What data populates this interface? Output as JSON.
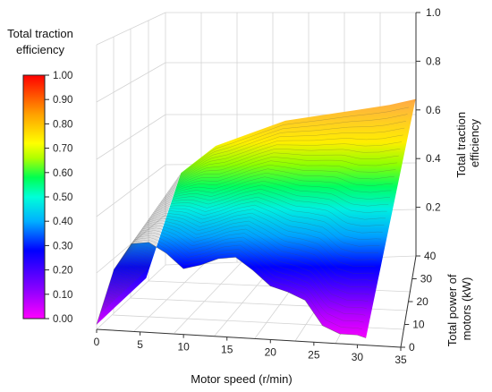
{
  "chart_data": {
    "type": "surface3d",
    "colorbar": {
      "title_line1": "Total traction",
      "title_line2": "efficiency",
      "ticks": [
        "1.00",
        "0.90",
        "0.80",
        "0.70",
        "0.60",
        "0.50",
        "0.40",
        "0.30",
        "0.20",
        "0.10",
        "0.00"
      ],
      "range": [
        0,
        1
      ],
      "colormap": [
        "#ff00ff",
        "#7a00ff",
        "#0000ff",
        "#00aaff",
        "#00ffd0",
        "#00ff40",
        "#a0ff00",
        "#ffff00",
        "#ffa000",
        "#ff0000"
      ]
    },
    "x_axis": {
      "label": "Motor speed (r/min)",
      "ticks": [
        "0",
        "5",
        "10",
        "15",
        "20",
        "25",
        "30",
        "35"
      ],
      "range": [
        0,
        35
      ]
    },
    "y_axis": {
      "label_line1": "Total power of",
      "label_line2": "motors (kW)",
      "ticks": [
        "0",
        "10",
        "20",
        "30",
        "40"
      ],
      "range": [
        0,
        40
      ]
    },
    "z_axis": {
      "label_line1": "Total traction",
      "label_line2": "efficiency",
      "ticks": [
        "0.2",
        "0.4",
        "0.6",
        "0.8",
        "1.0"
      ],
      "range": [
        0,
        1.0
      ]
    },
    "surface_front_profile": {
      "x": [
        0,
        2,
        4,
        6,
        8,
        10,
        12,
        14,
        16,
        18,
        20,
        22,
        24,
        26,
        28,
        30,
        31
      ],
      "z": [
        0.02,
        0.25,
        0.36,
        0.37,
        0.33,
        0.27,
        0.29,
        0.32,
        0.33,
        0.28,
        0.22,
        0.2,
        0.17,
        0.07,
        0.04,
        0.04,
        0.03
      ]
    },
    "surface_top_profile": {
      "x": [
        0,
        4,
        8,
        12,
        16,
        20,
        24,
        28,
        31
      ],
      "z": [
        0.02,
        0.46,
        0.58,
        0.64,
        0.7,
        0.73,
        0.76,
        0.79,
        0.82
      ]
    }
  }
}
